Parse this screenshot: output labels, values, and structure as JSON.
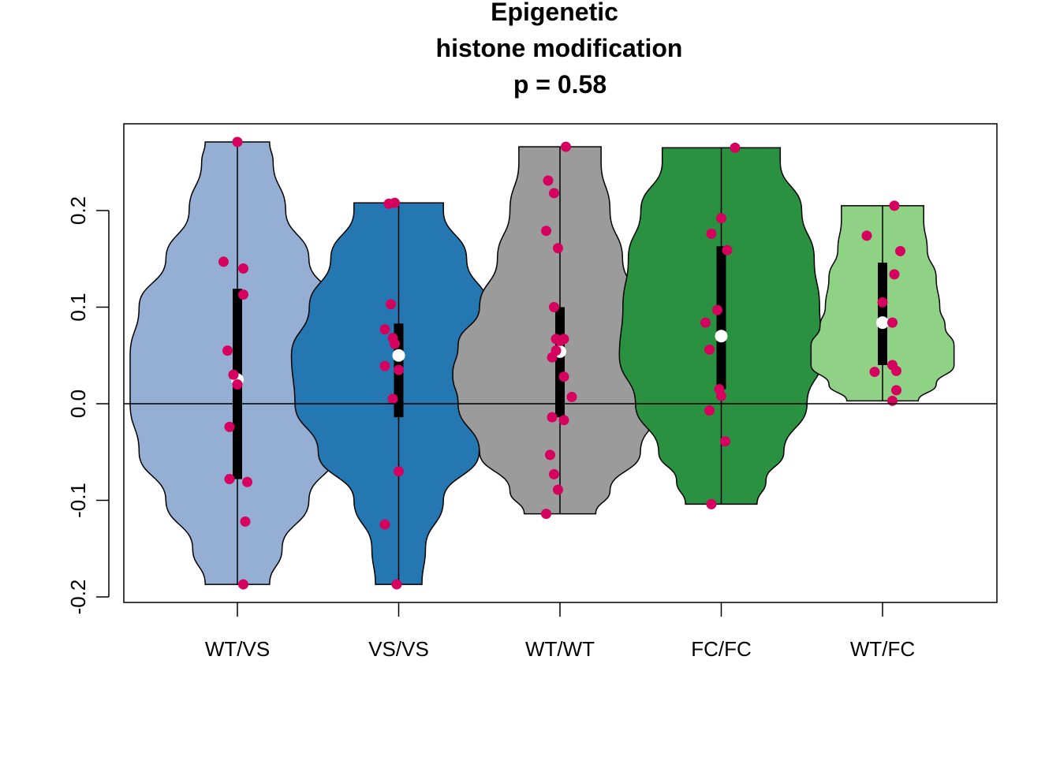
{
  "chart_data": {
    "type": "violin",
    "title": [
      "Epigenetic",
      "histone modification",
      "p = 0.58"
    ],
    "xlabel": "",
    "ylabel": "",
    "ylim": [
      -0.2,
      0.29
    ],
    "yticks": [
      -0.2,
      -0.1,
      0.0,
      0.1,
      0.2
    ],
    "ytick_labels": [
      "-0.2",
      "-0.1",
      "0.0",
      "0.1",
      "0.2"
    ],
    "reference_line": 0.0,
    "point_color": "#d6005f",
    "median_color": "#ffffff",
    "groups": [
      {
        "label": "WT/VS",
        "color": "#94aed4",
        "min": -0.187,
        "max": 0.271,
        "q1": -0.078,
        "q3": 0.119,
        "median": 0.025,
        "violin": [
          [
            -0.187,
            0.18
          ],
          [
            -0.15,
            0.25
          ],
          [
            -0.1,
            0.4
          ],
          [
            -0.05,
            0.55
          ],
          [
            0.0,
            0.6
          ],
          [
            0.05,
            0.6
          ],
          [
            0.1,
            0.55
          ],
          [
            0.15,
            0.4
          ],
          [
            0.2,
            0.27
          ],
          [
            0.25,
            0.2
          ],
          [
            0.271,
            0.18
          ]
        ],
        "points": [
          {
            "x": 0.0,
            "y": 0.271
          },
          {
            "x": -0.07,
            "y": 0.147
          },
          {
            "x": 0.03,
            "y": 0.14
          },
          {
            "x": 0.03,
            "y": 0.113
          },
          {
            "x": -0.05,
            "y": 0.055
          },
          {
            "x": -0.02,
            "y": 0.03
          },
          {
            "x": 0.0,
            "y": 0.02
          },
          {
            "x": -0.04,
            "y": -0.024
          },
          {
            "x": -0.04,
            "y": -0.078
          },
          {
            "x": 0.05,
            "y": -0.081
          },
          {
            "x": 0.04,
            "y": -0.122
          },
          {
            "x": 0.03,
            "y": -0.187
          }
        ]
      },
      {
        "label": "VS/VS",
        "color": "#2477b0",
        "min": -0.187,
        "max": 0.208,
        "q1": -0.014,
        "q3": 0.083,
        "median": 0.05,
        "violin": [
          [
            -0.187,
            0.13
          ],
          [
            -0.15,
            0.15
          ],
          [
            -0.1,
            0.25
          ],
          [
            -0.05,
            0.45
          ],
          [
            0.0,
            0.58
          ],
          [
            0.05,
            0.6
          ],
          [
            0.1,
            0.5
          ],
          [
            0.15,
            0.38
          ],
          [
            0.2,
            0.25
          ],
          [
            0.208,
            0.25
          ]
        ],
        "points": [
          {
            "x": -0.05,
            "y": 0.207
          },
          {
            "x": -0.02,
            "y": 0.208
          },
          {
            "x": -0.04,
            "y": 0.103
          },
          {
            "x": -0.07,
            "y": 0.077
          },
          {
            "x": -0.03,
            "y": 0.068
          },
          {
            "x": -0.02,
            "y": 0.062
          },
          {
            "x": -0.07,
            "y": 0.039
          },
          {
            "x": 0.0,
            "y": 0.035
          },
          {
            "x": -0.03,
            "y": 0.005
          },
          {
            "x": 0.0,
            "y": -0.07
          },
          {
            "x": -0.07,
            "y": -0.125
          },
          {
            "x": -0.01,
            "y": -0.187
          }
        ]
      },
      {
        "label": "WT/WT",
        "color": "#9b9b9b",
        "min": -0.114,
        "max": 0.266,
        "q1": -0.014,
        "q3": 0.1,
        "median": 0.054,
        "violin": [
          [
            -0.114,
            0.2
          ],
          [
            -0.09,
            0.28
          ],
          [
            -0.05,
            0.45
          ],
          [
            0.0,
            0.57
          ],
          [
            0.03,
            0.6
          ],
          [
            0.06,
            0.57
          ],
          [
            0.1,
            0.45
          ],
          [
            0.15,
            0.35
          ],
          [
            0.2,
            0.28
          ],
          [
            0.25,
            0.23
          ],
          [
            0.266,
            0.23
          ]
        ],
        "points": [
          {
            "x": 0.03,
            "y": 0.266
          },
          {
            "x": -0.06,
            "y": 0.231
          },
          {
            "x": -0.03,
            "y": 0.218
          },
          {
            "x": -0.07,
            "y": 0.179
          },
          {
            "x": -0.01,
            "y": 0.161
          },
          {
            "x": -0.03,
            "y": 0.1
          },
          {
            "x": -0.02,
            "y": 0.067
          },
          {
            "x": 0.0,
            "y": 0.065
          },
          {
            "x": 0.02,
            "y": 0.067
          },
          {
            "x": -0.02,
            "y": 0.055
          },
          {
            "x": -0.04,
            "y": 0.048
          },
          {
            "x": 0.02,
            "y": 0.028
          },
          {
            "x": 0.06,
            "y": 0.007
          },
          {
            "x": -0.04,
            "y": -0.014
          },
          {
            "x": 0.02,
            "y": -0.017
          },
          {
            "x": -0.05,
            "y": -0.053
          },
          {
            "x": -0.03,
            "y": -0.073
          },
          {
            "x": -0.01,
            "y": -0.089
          },
          {
            "x": -0.07,
            "y": -0.114
          }
        ]
      },
      {
        "label": "FC/FC",
        "color": "#2a9141",
        "min": -0.104,
        "max": 0.265,
        "q1": 0.015,
        "q3": 0.163,
        "median": 0.07,
        "violin": [
          [
            -0.104,
            0.2
          ],
          [
            -0.08,
            0.25
          ],
          [
            -0.05,
            0.35
          ],
          [
            0.0,
            0.48
          ],
          [
            0.05,
            0.57
          ],
          [
            0.1,
            0.55
          ],
          [
            0.15,
            0.52
          ],
          [
            0.2,
            0.45
          ],
          [
            0.25,
            0.33
          ],
          [
            0.265,
            0.33
          ]
        ],
        "points": [
          {
            "x": 0.07,
            "y": 0.265
          },
          {
            "x": 0.0,
            "y": 0.192
          },
          {
            "x": -0.05,
            "y": 0.176
          },
          {
            "x": 0.03,
            "y": 0.159
          },
          {
            "x": -0.02,
            "y": 0.097
          },
          {
            "x": -0.08,
            "y": 0.084
          },
          {
            "x": -0.06,
            "y": 0.056
          },
          {
            "x": -0.01,
            "y": 0.015
          },
          {
            "x": 0.0,
            "y": 0.008
          },
          {
            "x": -0.06,
            "y": -0.007
          },
          {
            "x": 0.02,
            "y": -0.039
          },
          {
            "x": -0.05,
            "y": -0.104
          }
        ]
      },
      {
        "label": "WT/FC",
        "color": "#90d285",
        "min": 0.003,
        "max": 0.205,
        "q1": 0.04,
        "q3": 0.146,
        "median": 0.084,
        "violin": [
          [
            0.003,
            0.2
          ],
          [
            0.02,
            0.3
          ],
          [
            0.04,
            0.4
          ],
          [
            0.06,
            0.4
          ],
          [
            0.08,
            0.35
          ],
          [
            0.1,
            0.32
          ],
          [
            0.13,
            0.3
          ],
          [
            0.16,
            0.25
          ],
          [
            0.19,
            0.23
          ],
          [
            0.205,
            0.23
          ]
        ],
        "points": [
          {
            "x": 0.06,
            "y": 0.205
          },
          {
            "x": -0.08,
            "y": 0.174
          },
          {
            "x": 0.09,
            "y": 0.158
          },
          {
            "x": 0.06,
            "y": 0.134
          },
          {
            "x": 0.0,
            "y": 0.105
          },
          {
            "x": 0.05,
            "y": 0.084
          },
          {
            "x": 0.05,
            "y": 0.04
          },
          {
            "x": 0.07,
            "y": 0.034
          },
          {
            "x": -0.04,
            "y": 0.033
          },
          {
            "x": 0.07,
            "y": 0.014
          },
          {
            "x": 0.05,
            "y": 0.003
          }
        ]
      }
    ]
  }
}
